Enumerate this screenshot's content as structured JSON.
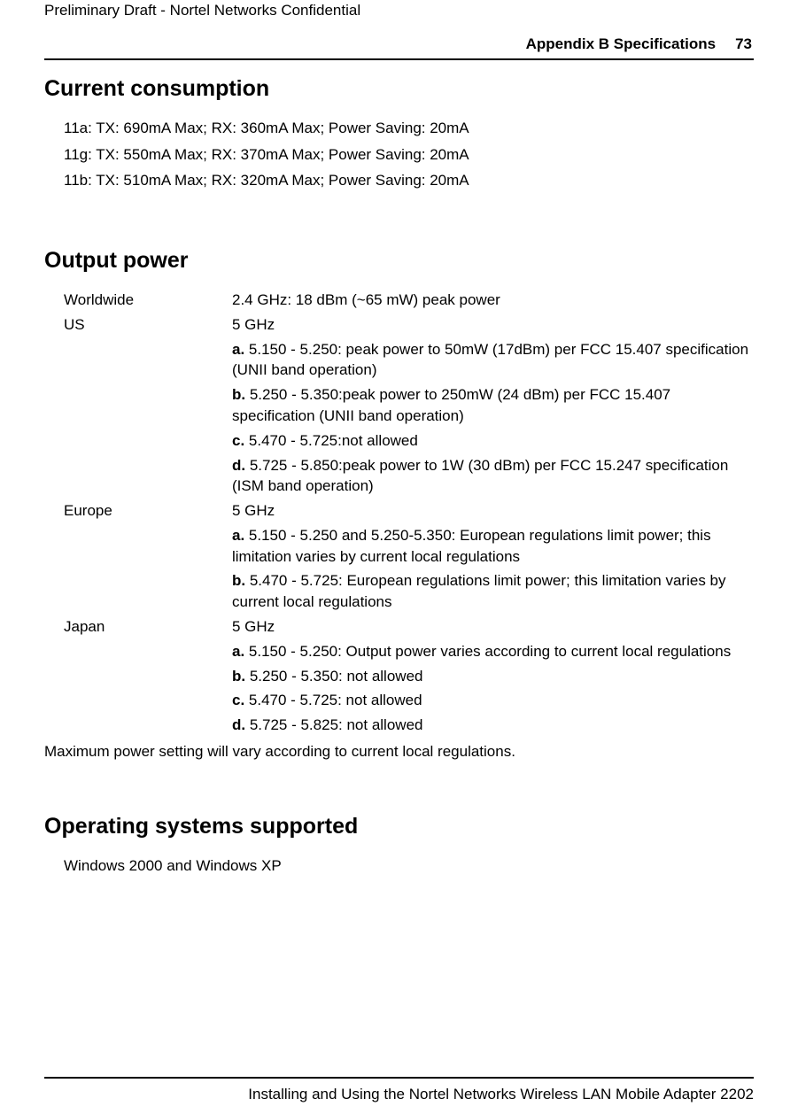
{
  "prelim": "Preliminary Draft - Nortel Networks Confidential",
  "header": {
    "title": "Appendix B Specifications",
    "page": "73"
  },
  "sections": {
    "current_consumption": {
      "heading": "Current consumption",
      "lines": [
        "11a: TX: 690mA Max; RX: 360mA Max; Power Saving: 20mA",
        "11g: TX: 550mA Max; RX: 370mA Max; Power Saving: 20mA",
        "11b: TX: 510mA Max; RX: 320mA Max; Power Saving: 20mA"
      ]
    },
    "output_power": {
      "heading": "Output power",
      "rows": [
        {
          "label": "Worldwide",
          "text": "2.4 GHz: 18 dBm (~65 mW) peak power"
        },
        {
          "label": "US",
          "text": "5 GHz"
        },
        {
          "label": "",
          "bold": "a.",
          "text": " 5.150 - 5.250: peak power to 50mW (17dBm) per FCC 15.407 specification (UNII band operation)"
        },
        {
          "label": "",
          "bold": "b.",
          "text": " 5.250 - 5.350:peak power to 250mW (24 dBm) per FCC 15.407 specification (UNII band operation)"
        },
        {
          "label": "",
          "bold": "c.",
          "text": " 5.470 - 5.725:not allowed"
        },
        {
          "label": "",
          "bold": "d.",
          "text": " 5.725 - 5.850:peak power to 1W (30 dBm) per FCC 15.247 specification (ISM band operation)"
        },
        {
          "label": "Europe",
          "text": "5 GHz"
        },
        {
          "label": "",
          "bold": "a.",
          "text": " 5.150 - 5.250 and 5.250-5.350: European regulations limit power; this limitation varies by current local regulations"
        },
        {
          "label": "",
          "bold": "b.",
          "text": " 5.470 - 5.725: European regulations limit power; this limitation varies by current local regulations"
        },
        {
          "label": "Japan",
          "text": "5 GHz"
        },
        {
          "label": "",
          "bold": "a.",
          "text": " 5.150 - 5.250: Output power varies according to current local regulations"
        },
        {
          "label": "",
          "bold": "b.",
          "text": " 5.250 - 5.350: not allowed"
        },
        {
          "label": "",
          "bold": "c.",
          "text": " 5.470 - 5.725: not allowed"
        },
        {
          "label": "",
          "bold": "d.",
          "text": " 5.725 - 5.825: not allowed"
        }
      ],
      "note": "Maximum power setting will vary according to current local regulations."
    },
    "os_supported": {
      "heading": "Operating systems supported",
      "lines": [
        "Windows 2000 and Windows XP"
      ]
    }
  },
  "footer": "Installing and Using the Nortel Networks Wireless LAN Mobile Adapter 2202"
}
